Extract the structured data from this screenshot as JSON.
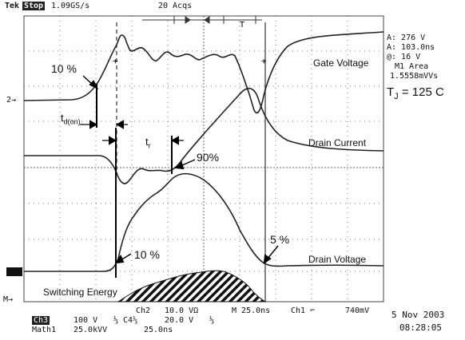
{
  "header": {
    "brand": "Tek",
    "mode": "Stop",
    "rate": "1.09GS/s",
    "acqs": "20 Acqs"
  },
  "left_markers": {
    "gate_ref": "2→",
    "bottom_label": "M→"
  },
  "cursor_readout": {
    "line1": "A: 276 V",
    "line2": "A: 103.0ns",
    "line3": "@: 16 V",
    "line4": "M1 Area",
    "line5": "1.5558mVVs"
  },
  "annotations": {
    "tj": "T",
    "tj_sub": "J",
    "tj_rest": " = 125 C",
    "gate_voltage": "Gate Voltage",
    "drain_current": "Drain Current",
    "drain_voltage": "Drain Voltage",
    "switching_energy": "Switching Energy",
    "pct10_top": "10 %",
    "pct90": "90%",
    "pct10_bottom": "10 %",
    "pct5": "5 %",
    "td_t": "t",
    "td_sub": "d(on)",
    "tr_t": "t",
    "tr_sub": "r"
  },
  "footer": {
    "ch_scale_a": "Ch2",
    "ch_scale_b": "10.0 VΩ",
    "ch_scale_c": "M 25.0ns",
    "ch_scale_d": "Ch1 ⌐",
    "ch_scale_e": "740mV",
    "row2_a": "Ch3",
    "row2_b": "100 V",
    "row2_c": "⅓ C4⅓",
    "row2_d": "20.0 V",
    "row2_e": "⅓",
    "row3_a": "Math1",
    "row3_b": "25.0kVV",
    "row3_c": "25.0ns",
    "date": "5 Nov 2003",
    "time": "08:28:05"
  },
  "colors": {
    "trace": "#222222",
    "grid": "#555555",
    "background": "#ffffff"
  }
}
